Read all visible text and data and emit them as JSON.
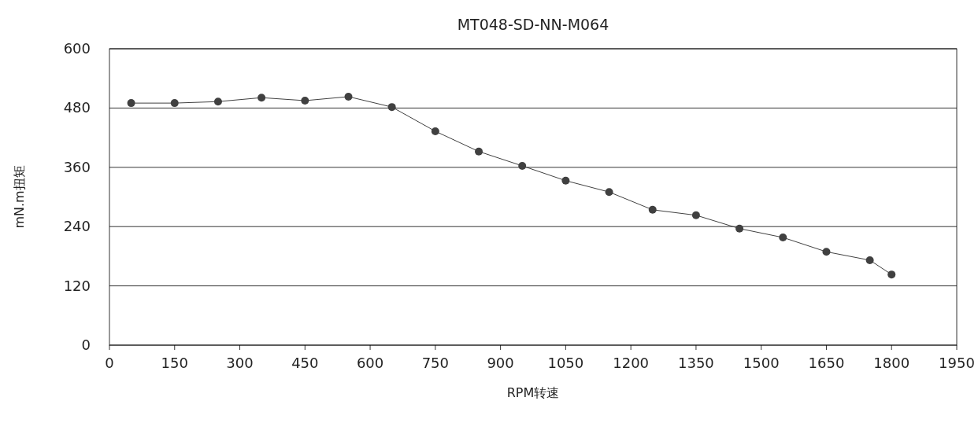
{
  "chart_data": {
    "type": "line",
    "title": "MT048-SD-NN-M064",
    "xlabel": "RPM转速",
    "ylabel": "mN.m扭矩",
    "x": [
      50,
      150,
      250,
      350,
      450,
      550,
      650,
      750,
      850,
      950,
      1050,
      1150,
      1250,
      1350,
      1450,
      1550,
      1650,
      1750,
      1800
    ],
    "series": [
      {
        "color": "#404040",
        "values": [
          490,
          490,
          493,
          501,
          495,
          503,
          482,
          433,
          392,
          363,
          333,
          310,
          274,
          263,
          236,
          218,
          189,
          172,
          143
        ]
      }
    ],
    "xlim": [
      0,
      1950
    ],
    "xticks": [
      0,
      150,
      300,
      450,
      600,
      750,
      900,
      1050,
      1200,
      1350,
      1500,
      1650,
      1800,
      1950
    ],
    "ylim": [
      0,
      600
    ],
    "yticks": [
      0,
      120,
      240,
      360,
      480,
      600
    ],
    "grid": "y",
    "marker": "circle",
    "line_style": "solid"
  }
}
